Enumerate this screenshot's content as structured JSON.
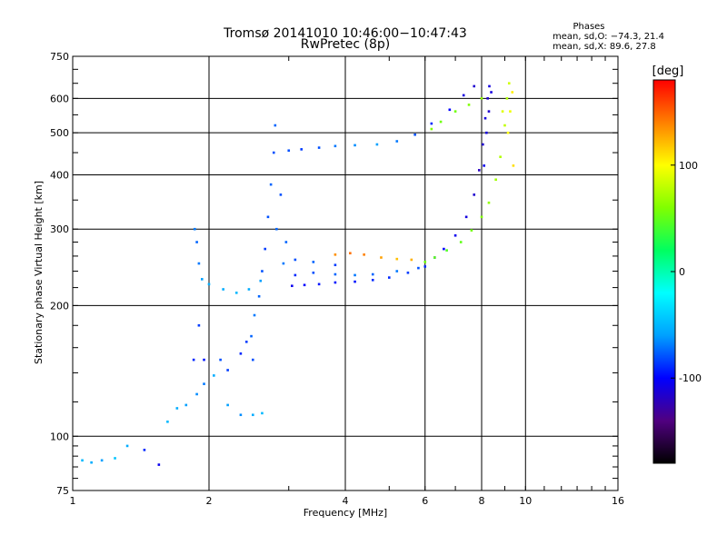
{
  "header": {
    "title": "Tromsø 20141010 10:46:00−10:47:43",
    "subtitle": "RwPretec (8p)",
    "stats_title": "Phases",
    "stats_line_o": "mean, sd,O: −74.3, 21.4",
    "stats_line_x": "mean, sd,X: 89.6, 27.8"
  },
  "chart_data": {
    "type": "scatter",
    "title": "Tromsø 20141010 10:46:00−10:47:43",
    "subtitle": "RwPretec (8p)",
    "xlabel": "Frequency [MHz]",
    "ylabel": "Stationary phase Virtual Height [km]",
    "x_scale": "log",
    "y_scale": "log",
    "xlim": [
      1,
      16
    ],
    "ylim": [
      75,
      750
    ],
    "x_ticks": [
      1,
      2,
      4,
      6,
      8,
      10,
      16
    ],
    "y_ticks": [
      75,
      100,
      200,
      300,
      400,
      500,
      600,
      750
    ],
    "grid": true,
    "colorbar": {
      "label": "[deg]",
      "range": [
        -180,
        180
      ],
      "ticks": [
        -100,
        0,
        100
      ],
      "colors": [
        "#000000",
        "#500080",
        "#0000ff",
        "#00a0ff",
        "#00ffff",
        "#00ff60",
        "#80ff00",
        "#ffff00",
        "#ff8000",
        "#ff0000"
      ]
    },
    "series": [
      {
        "mode": "O",
        "points": [
          [
            1.05,
            88,
            -50
          ],
          [
            1.1,
            87,
            -55
          ],
          [
            1.16,
            88,
            -60
          ],
          [
            1.24,
            89,
            -45
          ],
          [
            1.32,
            95,
            -55
          ],
          [
            1.44,
            93,
            -90
          ],
          [
            1.55,
            86,
            -105
          ],
          [
            1.62,
            108,
            -50
          ],
          [
            1.7,
            116,
            -55
          ],
          [
            1.78,
            118,
            -60
          ],
          [
            1.88,
            125,
            -65
          ],
          [
            1.95,
            132,
            -70
          ],
          [
            2.05,
            138,
            -55
          ],
          [
            2.2,
            118,
            -60
          ],
          [
            2.35,
            112,
            -65
          ],
          [
            2.5,
            112,
            -55
          ],
          [
            2.62,
            113,
            -50
          ],
          [
            1.85,
            150,
            -90
          ],
          [
            1.9,
            180,
            -85
          ],
          [
            1.95,
            150,
            -95
          ],
          [
            2.12,
            150,
            -80
          ],
          [
            2.2,
            142,
            -85
          ],
          [
            2.35,
            155,
            -90
          ],
          [
            2.42,
            165,
            -85
          ],
          [
            2.5,
            150,
            -80
          ],
          [
            2.48,
            170,
            -75
          ],
          [
            2.52,
            190,
            -70
          ],
          [
            2.58,
            210,
            -75
          ],
          [
            2.62,
            240,
            -80
          ],
          [
            2.66,
            270,
            -85
          ],
          [
            2.7,
            320,
            -80
          ],
          [
            2.74,
            380,
            -75
          ],
          [
            2.78,
            450,
            -80
          ],
          [
            2.8,
            520,
            -75
          ],
          [
            2.82,
            300,
            -75
          ],
          [
            2.88,
            360,
            -80
          ],
          [
            2.92,
            250,
            -70
          ],
          [
            2.96,
            280,
            -75
          ],
          [
            1.86,
            300,
            -70
          ],
          [
            1.88,
            280,
            -75
          ],
          [
            1.9,
            250,
            -70
          ],
          [
            1.93,
            230,
            -60
          ],
          [
            2.0,
            224,
            -55
          ],
          [
            2.15,
            218,
            -55
          ],
          [
            2.3,
            214,
            -50
          ],
          [
            2.45,
            218,
            -55
          ],
          [
            2.6,
            228,
            -60
          ],
          [
            3.05,
            222,
            -105
          ],
          [
            3.25,
            223,
            -100
          ],
          [
            3.5,
            224,
            -95
          ],
          [
            3.8,
            226,
            -95
          ],
          [
            4.2,
            227,
            -95
          ],
          [
            4.6,
            229,
            -90
          ],
          [
            5.0,
            232,
            -90
          ],
          [
            5.5,
            238,
            -85
          ],
          [
            6.0,
            246,
            -90
          ],
          [
            3.1,
            235,
            -90
          ],
          [
            3.4,
            238,
            -80
          ],
          [
            3.8,
            236,
            -75
          ],
          [
            4.2,
            235,
            -70
          ],
          [
            4.6,
            236,
            -75
          ],
          [
            5.2,
            240,
            -70
          ],
          [
            5.8,
            244,
            -80
          ],
          [
            3.1,
            255,
            -80
          ],
          [
            3.4,
            252,
            -75
          ],
          [
            3.8,
            248,
            -85
          ],
          [
            6.3,
            258,
            -95
          ],
          [
            6.6,
            270,
            -100
          ],
          [
            7.0,
            290,
            -105
          ],
          [
            7.4,
            320,
            -110
          ],
          [
            7.7,
            360,
            -115
          ],
          [
            7.9,
            410,
            -120
          ],
          [
            8.05,
            470,
            -115
          ],
          [
            8.15,
            540,
            -110
          ],
          [
            8.25,
            600,
            -115
          ],
          [
            8.32,
            640,
            -110
          ],
          [
            8.1,
            420,
            -105
          ],
          [
            8.2,
            500,
            -110
          ],
          [
            8.3,
            560,
            -115
          ],
          [
            8.4,
            620,
            -110
          ],
          [
            3.0,
            455,
            -80
          ],
          [
            3.2,
            458,
            -85
          ],
          [
            3.5,
            462,
            -80
          ],
          [
            3.8,
            466,
            -70
          ],
          [
            4.2,
            468,
            -65
          ],
          [
            4.7,
            470,
            -60
          ],
          [
            5.2,
            478,
            -70
          ],
          [
            5.7,
            495,
            -80
          ],
          [
            6.2,
            525,
            -90
          ],
          [
            6.8,
            565,
            -100
          ],
          [
            7.3,
            610,
            -110
          ],
          [
            7.7,
            640,
            -115
          ]
        ]
      },
      {
        "mode": "X",
        "points": [
          [
            3.8,
            262,
            135
          ],
          [
            4.1,
            264,
            145
          ],
          [
            4.4,
            262,
            140
          ],
          [
            4.8,
            258,
            130
          ],
          [
            5.2,
            256,
            120
          ],
          [
            5.6,
            255,
            125
          ],
          [
            6.0,
            252,
            55
          ],
          [
            6.3,
            258,
            50
          ],
          [
            6.7,
            268,
            45
          ],
          [
            7.2,
            280,
            50
          ],
          [
            7.6,
            298,
            55
          ],
          [
            8.0,
            320,
            60
          ],
          [
            8.3,
            345,
            65
          ],
          [
            8.6,
            390,
            70
          ],
          [
            8.8,
            440,
            75
          ],
          [
            9.0,
            520,
            80
          ],
          [
            9.1,
            600,
            75
          ],
          [
            9.2,
            650,
            85
          ],
          [
            9.15,
            500,
            100
          ],
          [
            9.25,
            560,
            95
          ],
          [
            9.35,
            620,
            105
          ],
          [
            8.9,
            560,
            90
          ],
          [
            9.4,
            420,
            110
          ],
          [
            6.2,
            510,
            60
          ],
          [
            6.5,
            530,
            55
          ],
          [
            7.0,
            560,
            55
          ],
          [
            7.5,
            580,
            60
          ],
          [
            8.0,
            600,
            65
          ]
        ]
      }
    ]
  }
}
